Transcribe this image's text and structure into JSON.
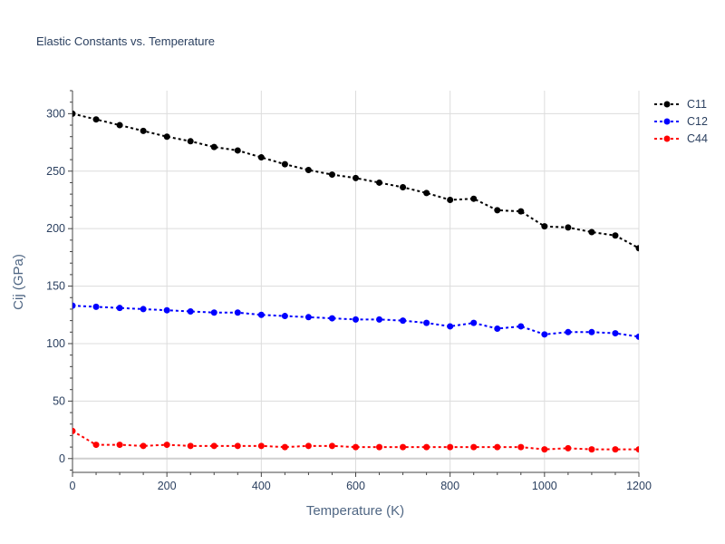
{
  "chart_data": {
    "type": "line",
    "title": "Elastic Constants vs. Temperature",
    "xlabel": "Temperature (K)",
    "ylabel": "Cij (GPa)",
    "xlim": [
      0,
      1200
    ],
    "ylim": [
      -12,
      320
    ],
    "xticks": [
      0,
      200,
      400,
      600,
      800,
      1000,
      1200
    ],
    "yticks": [
      0,
      50,
      100,
      150,
      200,
      250,
      300
    ],
    "grid": true,
    "legend_position": "top-right",
    "x": [
      0,
      50,
      100,
      150,
      200,
      250,
      300,
      350,
      400,
      450,
      500,
      550,
      600,
      650,
      700,
      750,
      800,
      850,
      900,
      950,
      1000,
      1050,
      1100,
      1150,
      1200
    ],
    "series": [
      {
        "name": "C11",
        "color": "#000000",
        "values": [
          300,
          295,
          290,
          285,
          280,
          276,
          271,
          268,
          262,
          256,
          251,
          247,
          244,
          240,
          236,
          231,
          225,
          226,
          216,
          215,
          202,
          201,
          197,
          194,
          183
        ]
      },
      {
        "name": "C12",
        "color": "#0000ff",
        "values": [
          133,
          132,
          131,
          130,
          129,
          128,
          127,
          127,
          125,
          124,
          123,
          122,
          121,
          121,
          120,
          118,
          115,
          118,
          113,
          115,
          108,
          110,
          110,
          109,
          106
        ]
      },
      {
        "name": "C44",
        "color": "#ff0000",
        "values": [
          24,
          12,
          12,
          11,
          12,
          11,
          11,
          11,
          11,
          10,
          11,
          11,
          10,
          10,
          10,
          10,
          10,
          10,
          10,
          10,
          8,
          9,
          8,
          8,
          8
        ]
      }
    ]
  }
}
